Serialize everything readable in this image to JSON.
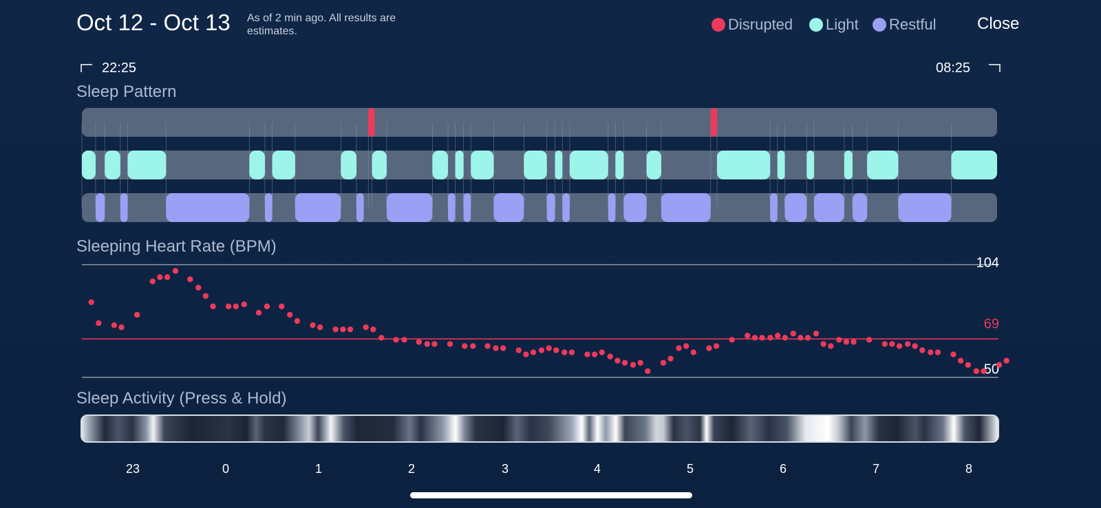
{
  "header": {
    "date_range": "Oct 12 - Oct 13",
    "note": "As of 2 min ago. All results are estimates.",
    "close_label": "Close"
  },
  "legend": [
    {
      "label": "Disrupted",
      "color": "#ee3a5a"
    },
    {
      "label": "Light",
      "color": "#9df5ea"
    },
    {
      "label": "Restful",
      "color": "#9aa0f3"
    }
  ],
  "time_range": {
    "start": "22:25",
    "end": "08:25"
  },
  "sections": {
    "sleep_pattern": "Sleep Pattern",
    "heart_rate": "Sleeping Heart Rate (BPM)",
    "activity": "Sleep Activity (Press & Hold)"
  },
  "heart_rate": {
    "max": "104",
    "avg": "69",
    "min": "50"
  },
  "colors": {
    "background": "#0e2444",
    "track": "#57677e",
    "disrupted": "#ee3a5a",
    "light": "#9df5ea",
    "restful": "#9aa0f3",
    "hr_dot": "#ee3a5a"
  },
  "chart_data": [
    {
      "type": "timeline",
      "title": "Sleep Pattern",
      "x_unit": "hours since 22:25",
      "xlim": [
        0,
        10
      ],
      "stages": {
        "disrupted": [
          [
            3.13,
            3.2
          ],
          [
            6.87,
            6.94
          ]
        ],
        "light": [
          [
            0.0,
            0.15
          ],
          [
            0.25,
            0.42
          ],
          [
            0.5,
            0.92
          ],
          [
            1.83,
            2.0
          ],
          [
            2.08,
            2.33
          ],
          [
            2.83,
            3.0
          ],
          [
            3.17,
            3.33
          ],
          [
            3.83,
            4.0
          ],
          [
            4.08,
            4.17
          ],
          [
            4.25,
            4.5
          ],
          [
            4.83,
            5.08
          ],
          [
            5.17,
            5.25
          ],
          [
            5.33,
            5.75
          ],
          [
            5.83,
            5.92
          ],
          [
            6.17,
            6.33
          ],
          [
            6.94,
            7.52
          ],
          [
            7.6,
            7.68
          ],
          [
            7.92,
            8.0
          ],
          [
            8.33,
            8.42
          ],
          [
            8.58,
            8.92
          ],
          [
            9.5,
            10.0
          ]
        ],
        "restful": [
          [
            0.15,
            0.25
          ],
          [
            0.42,
            0.5
          ],
          [
            0.92,
            1.83
          ],
          [
            2.0,
            2.08
          ],
          [
            2.33,
            2.83
          ],
          [
            3.0,
            3.08
          ],
          [
            3.33,
            3.83
          ],
          [
            4.0,
            4.08
          ],
          [
            4.17,
            4.25
          ],
          [
            4.5,
            4.83
          ],
          [
            5.08,
            5.17
          ],
          [
            5.25,
            5.33
          ],
          [
            5.75,
            5.83
          ],
          [
            5.92,
            6.17
          ],
          [
            6.33,
            6.87
          ],
          [
            7.52,
            7.6
          ],
          [
            7.68,
            7.92
          ],
          [
            8.0,
            8.33
          ],
          [
            8.42,
            8.58
          ],
          [
            8.92,
            9.5
          ]
        ]
      }
    },
    {
      "type": "scatter",
      "title": "Sleeping Heart Rate (BPM)",
      "x_unit": "hours since 22:25",
      "xlim": [
        0,
        10
      ],
      "ylim": [
        50,
        104
      ],
      "reference_line": 69,
      "x": [
        0.05,
        0.13,
        0.3,
        0.38,
        0.55,
        0.72,
        0.8,
        0.88,
        0.97,
        1.13,
        1.22,
        1.3,
        1.38,
        1.55,
        1.63,
        1.72,
        1.88,
        1.97,
        2.13,
        2.22,
        2.3,
        2.47,
        2.55,
        2.72,
        2.8,
        2.88,
        3.05,
        3.13,
        3.22,
        3.38,
        3.47,
        3.63,
        3.72,
        3.8,
        3.97,
        4.13,
        4.22,
        4.38,
        4.47,
        4.55,
        4.72,
        4.8,
        4.88,
        4.97,
        5.05,
        5.13,
        5.22,
        5.3,
        5.47,
        5.55,
        5.63,
        5.72,
        5.8,
        5.88,
        5.97,
        6.05,
        6.13,
        6.3,
        6.38,
        6.47,
        6.55,
        6.63,
        6.8,
        6.88,
        7.05,
        7.22,
        7.3,
        7.38,
        7.47,
        7.55,
        7.63,
        7.72,
        7.8,
        7.88,
        7.97,
        8.05,
        8.13,
        8.22,
        8.3,
        8.38,
        8.55,
        8.72,
        8.8,
        8.88,
        8.97,
        9.05,
        9.13,
        9.22,
        9.3,
        9.47,
        9.55,
        9.63,
        9.72,
        9.8,
        9.97,
        10.05
      ],
      "y": [
        86,
        76,
        75,
        74,
        80,
        96,
        98,
        98,
        101,
        97,
        93,
        89,
        84,
        84,
        84,
        85,
        81,
        84,
        84,
        80,
        77,
        75,
        74,
        73,
        73,
        73,
        74,
        73,
        69,
        68,
        68,
        67,
        66,
        66,
        66,
        65,
        65,
        65,
        64,
        64,
        63,
        61,
        62,
        63,
        64,
        63,
        62,
        62,
        61,
        61,
        62,
        60,
        58,
        57,
        56,
        57,
        53,
        57,
        59,
        64,
        65,
        62,
        64,
        65,
        68,
        70,
        69,
        69,
        69,
        70,
        69,
        71,
        69,
        69,
        71,
        66,
        65,
        68,
        67,
        67,
        68,
        66,
        66,
        65,
        66,
        65,
        63,
        62,
        62,
        61,
        58,
        56,
        53,
        53,
        56,
        58
      ]
    },
    {
      "type": "heatmap",
      "title": "Sleep Activity (Press & Hold)",
      "x_tick_labels": [
        "23",
        "0",
        "1",
        "2",
        "3",
        "4",
        "5",
        "6",
        "7",
        "8"
      ]
    }
  ]
}
